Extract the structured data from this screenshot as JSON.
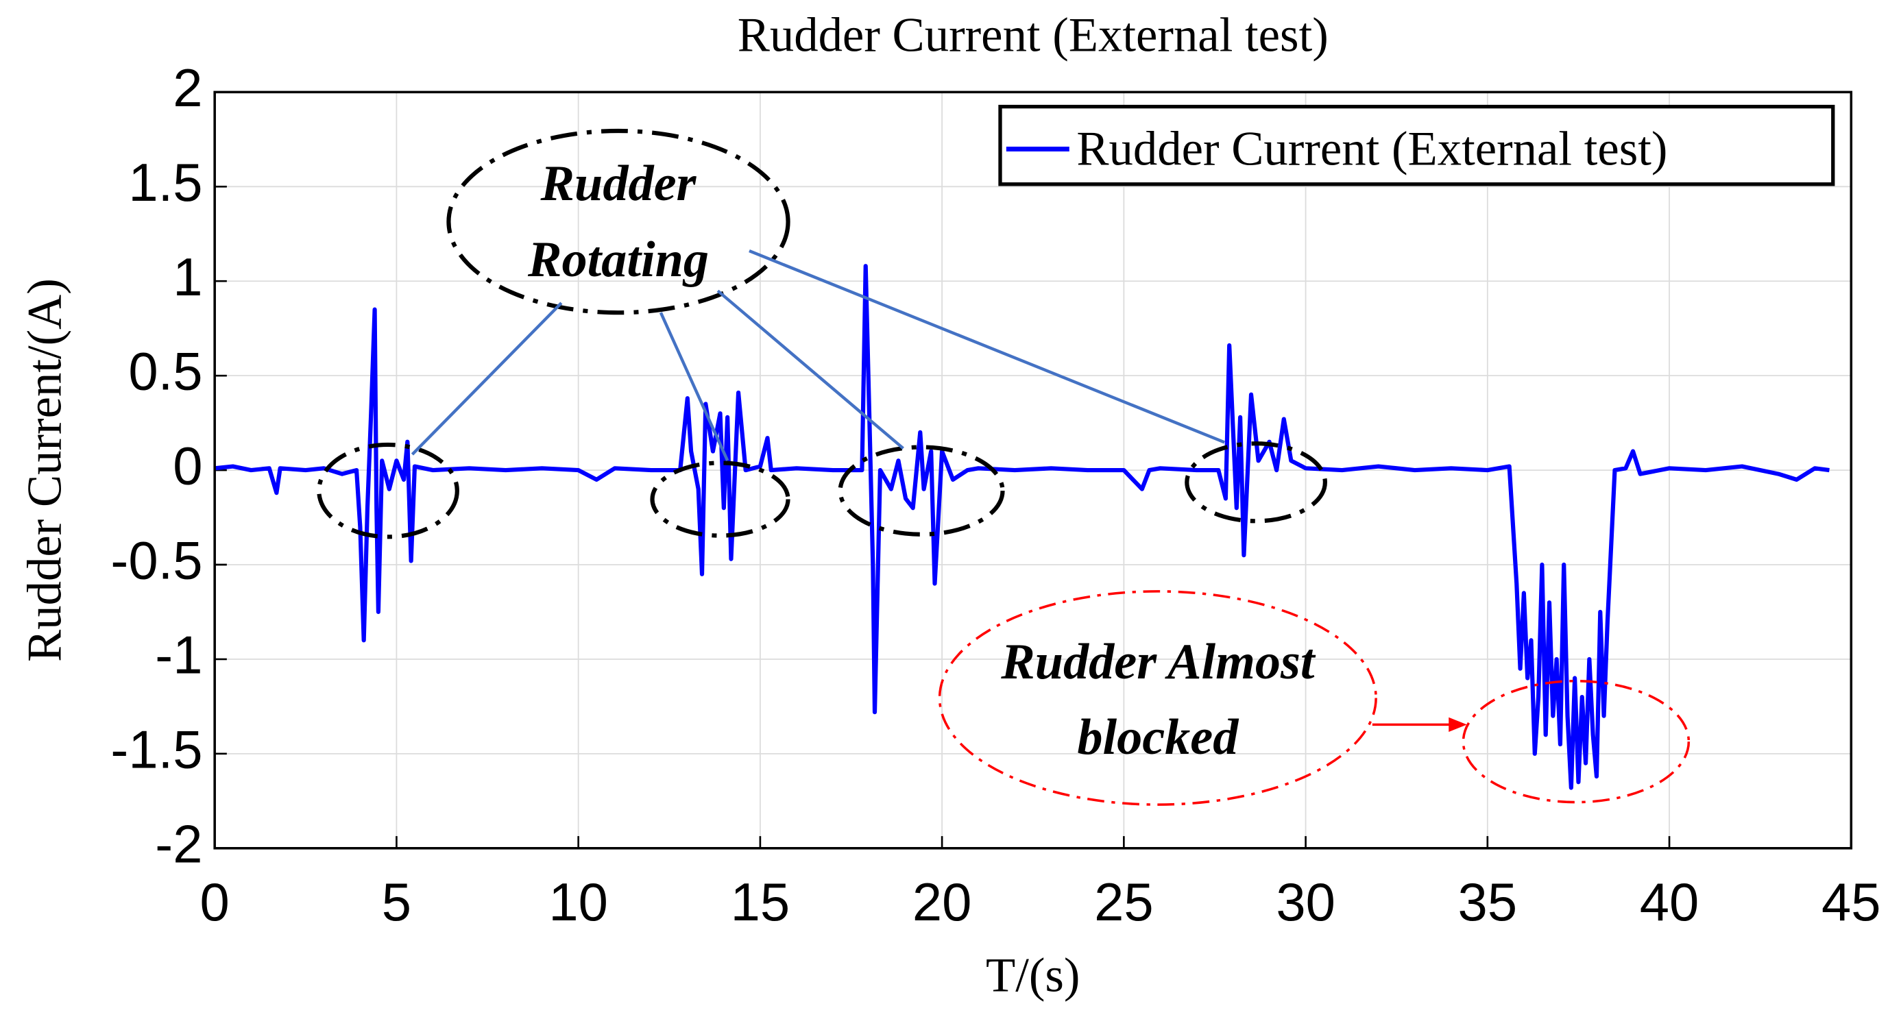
{
  "chart_data": {
    "type": "line",
    "title": "Rudder Current (External test)",
    "x_label": "T/(s)",
    "y_label": "Rudder Current/(A)",
    "x": [
      0,
      0.5,
      1,
      1.5,
      1.7,
      1.8,
      2.5,
      3,
      3.5,
      3.9,
      4.0,
      4.1,
      4.2,
      4.3,
      4.4,
      4.45,
      4.5,
      4.6,
      4.8,
      5.0,
      5.2,
      5.3,
      5.4,
      5.5,
      6,
      7,
      8,
      9,
      10,
      10.5,
      11,
      12,
      12.8,
      13.0,
      13.1,
      13.3,
      13.4,
      13.5,
      13.7,
      13.9,
      14.0,
      14.1,
      14.2,
      14.4,
      14.6,
      15.0,
      15.2,
      15.3,
      16,
      17,
      17.8,
      17.9,
      18.0,
      18.1,
      18.15,
      18.3,
      18.6,
      18.8,
      19.0,
      19.2,
      19.4,
      19.5,
      19.7,
      19.8,
      20.0,
      20.3,
      20.7,
      21,
      22,
      23,
      24,
      25,
      25.5,
      25.7,
      26,
      27,
      27.6,
      27.8,
      27.9,
      28.1,
      28.2,
      28.3,
      28.5,
      28.7,
      29.0,
      29.2,
      29.4,
      29.6,
      30,
      31,
      32,
      33,
      34,
      35,
      35.6,
      35.8,
      35.9,
      36.0,
      36.1,
      36.2,
      36.3,
      36.4,
      36.5,
      36.6,
      36.7,
      36.8,
      36.9,
      37.0,
      37.1,
      37.2,
      37.3,
      37.4,
      37.5,
      37.6,
      37.7,
      37.8,
      37.9,
      38.0,
      38.1,
      38.2,
      38.3,
      38.5,
      38.8,
      39.0,
      39.2,
      40,
      41,
      42,
      43,
      43.5,
      44,
      44.4
    ],
    "series": [
      {
        "name": "Rudder Current (External test)",
        "color": "#0000ff",
        "values": [
          0.01,
          0.02,
          0.0,
          0.01,
          -0.12,
          0.01,
          0.0,
          0.01,
          -0.02,
          0.0,
          -0.3,
          -0.9,
          -0.2,
          0.3,
          0.85,
          -0.2,
          -0.75,
          0.05,
          -0.1,
          0.05,
          -0.05,
          0.15,
          -0.48,
          0.02,
          0.0,
          0.01,
          0.0,
          0.01,
          0.0,
          -0.05,
          0.01,
          0.0,
          0.0,
          0.38,
          0.1,
          -0.1,
          -0.55,
          0.35,
          0.1,
          0.3,
          -0.2,
          0.28,
          -0.47,
          0.41,
          0.0,
          0.02,
          0.17,
          0.0,
          0.01,
          0.0,
          0.0,
          1.08,
          0.3,
          -0.5,
          -1.28,
          0.0,
          -0.1,
          0.05,
          -0.15,
          -0.2,
          0.2,
          -0.1,
          0.1,
          -0.6,
          0.1,
          -0.05,
          0.0,
          0.01,
          0.0,
          0.01,
          0.0,
          0.0,
          -0.1,
          0.0,
          0.01,
          0.0,
          0.0,
          -0.15,
          0.66,
          -0.2,
          0.28,
          -0.45,
          0.4,
          0.05,
          0.15,
          0.0,
          0.27,
          0.05,
          0.01,
          0.0,
          0.02,
          0.0,
          0.01,
          0.0,
          0.02,
          -0.6,
          -1.05,
          -0.65,
          -1.1,
          -0.9,
          -1.5,
          -1.2,
          -0.5,
          -1.4,
          -0.7,
          -1.3,
          -1.0,
          -1.45,
          -0.5,
          -1.3,
          -1.68,
          -1.1,
          -1.65,
          -1.2,
          -1.55,
          -1.0,
          -1.4,
          -1.62,
          -0.75,
          -1.3,
          -0.8,
          0.0,
          0.01,
          0.1,
          -0.02,
          0.01,
          0.0,
          0.02,
          -0.02,
          -0.05,
          0.01,
          0.0
        ]
      }
    ],
    "xlim": [
      0,
      45
    ],
    "xticks": [
      0,
      5,
      10,
      15,
      20,
      25,
      30,
      35,
      40,
      45
    ],
    "ylim": [
      -2,
      2
    ],
    "yticks": [
      -2,
      -1.5,
      -1,
      -0.5,
      0,
      0.5,
      1,
      1.5,
      2
    ],
    "grid": true,
    "legend": "upper right",
    "annotations": [
      {
        "text": [
          "Rudder",
          "Rotating"
        ],
        "color": "#000000"
      },
      {
        "text": [
          "Rudder Almost",
          "blocked"
        ],
        "color": "#ff0000"
      }
    ]
  }
}
